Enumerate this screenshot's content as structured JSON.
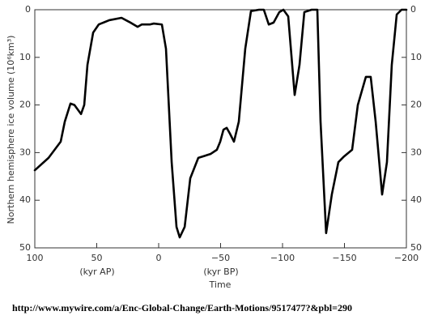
{
  "chart_data": {
    "type": "line",
    "xlabel": "Time",
    "ylabel": "Northern hemisphere ice volume (10⁶km³)",
    "annotations": [
      "(kyr AP)",
      "(kyr BP)"
    ],
    "x": [
      100,
      88.9,
      79.1,
      75.8,
      71.2,
      68,
      62.7,
      60.1,
      57.5,
      52.9,
      48.4,
      39.9,
      30,
      23.5,
      17,
      13.7,
      7.2,
      3.9,
      -2.6,
      -5.9,
      -10.5,
      -14.4,
      -17,
      -21,
      -25.5,
      -32,
      -41.8,
      -47,
      -49.7,
      -52.3,
      -54.9,
      -57.5,
      -60.8,
      -64.7,
      -69.9,
      -74.5,
      -81,
      -84.9,
      -88.9,
      -92.8,
      -97.4,
      -100.7,
      -104.6,
      -109.8,
      -113.7,
      -117.6,
      -123.5,
      -128.1,
      -130.7,
      -135.2,
      -139.8,
      -145.1,
      -149.7,
      -156.2,
      -160.8,
      -167.3,
      -171.2,
      -175.2,
      -180.4,
      -184.3,
      -188.2,
      -192.2,
      -196.1,
      -200
    ],
    "series": [
      {
        "color": "#000000",
        "values": [
          33.7,
          31.1,
          27.7,
          23.5,
          19.7,
          20,
          21.9,
          20,
          11.6,
          4.8,
          3.1,
          2.2,
          1.7,
          2.6,
          3.6,
          3.1,
          3.1,
          2.9,
          3.1,
          8.2,
          32,
          45.6,
          47.8,
          45.6,
          35.4,
          31.1,
          30.3,
          29.4,
          27.7,
          25.2,
          24.8,
          26,
          27.7,
          23.5,
          8.2,
          0.3,
          0,
          0,
          3.1,
          2.7,
          0.5,
          0,
          1.4,
          17.9,
          11.6,
          0.5,
          0,
          0,
          23.5,
          46.9,
          38.8,
          32,
          30.8,
          29.4,
          20,
          14.1,
          14.1,
          23.5,
          38.8,
          32,
          11.6,
          1,
          0,
          0
        ]
      }
    ],
    "xlim": [
      100,
      -200
    ],
    "xticks": [
      100,
      50,
      0,
      {
        "value": -50,
        "label": "−50"
      },
      {
        "value": -100,
        "label": "−100"
      },
      {
        "value": -150,
        "label": "−150"
      },
      {
        "value": -200,
        "label": "−200"
      }
    ],
    "ylim": [
      0,
      50
    ],
    "y_inverted": true,
    "yticks": [
      0,
      10,
      20,
      30,
      40,
      50
    ],
    "y2lim": [
      0,
      50
    ],
    "y2ticks": [
      0,
      10,
      20,
      30,
      40,
      50
    ]
  },
  "footer": "http://www.mywire.com/a/Enc-Global-Change/Earth-Motions/9517477?&pbl=290"
}
